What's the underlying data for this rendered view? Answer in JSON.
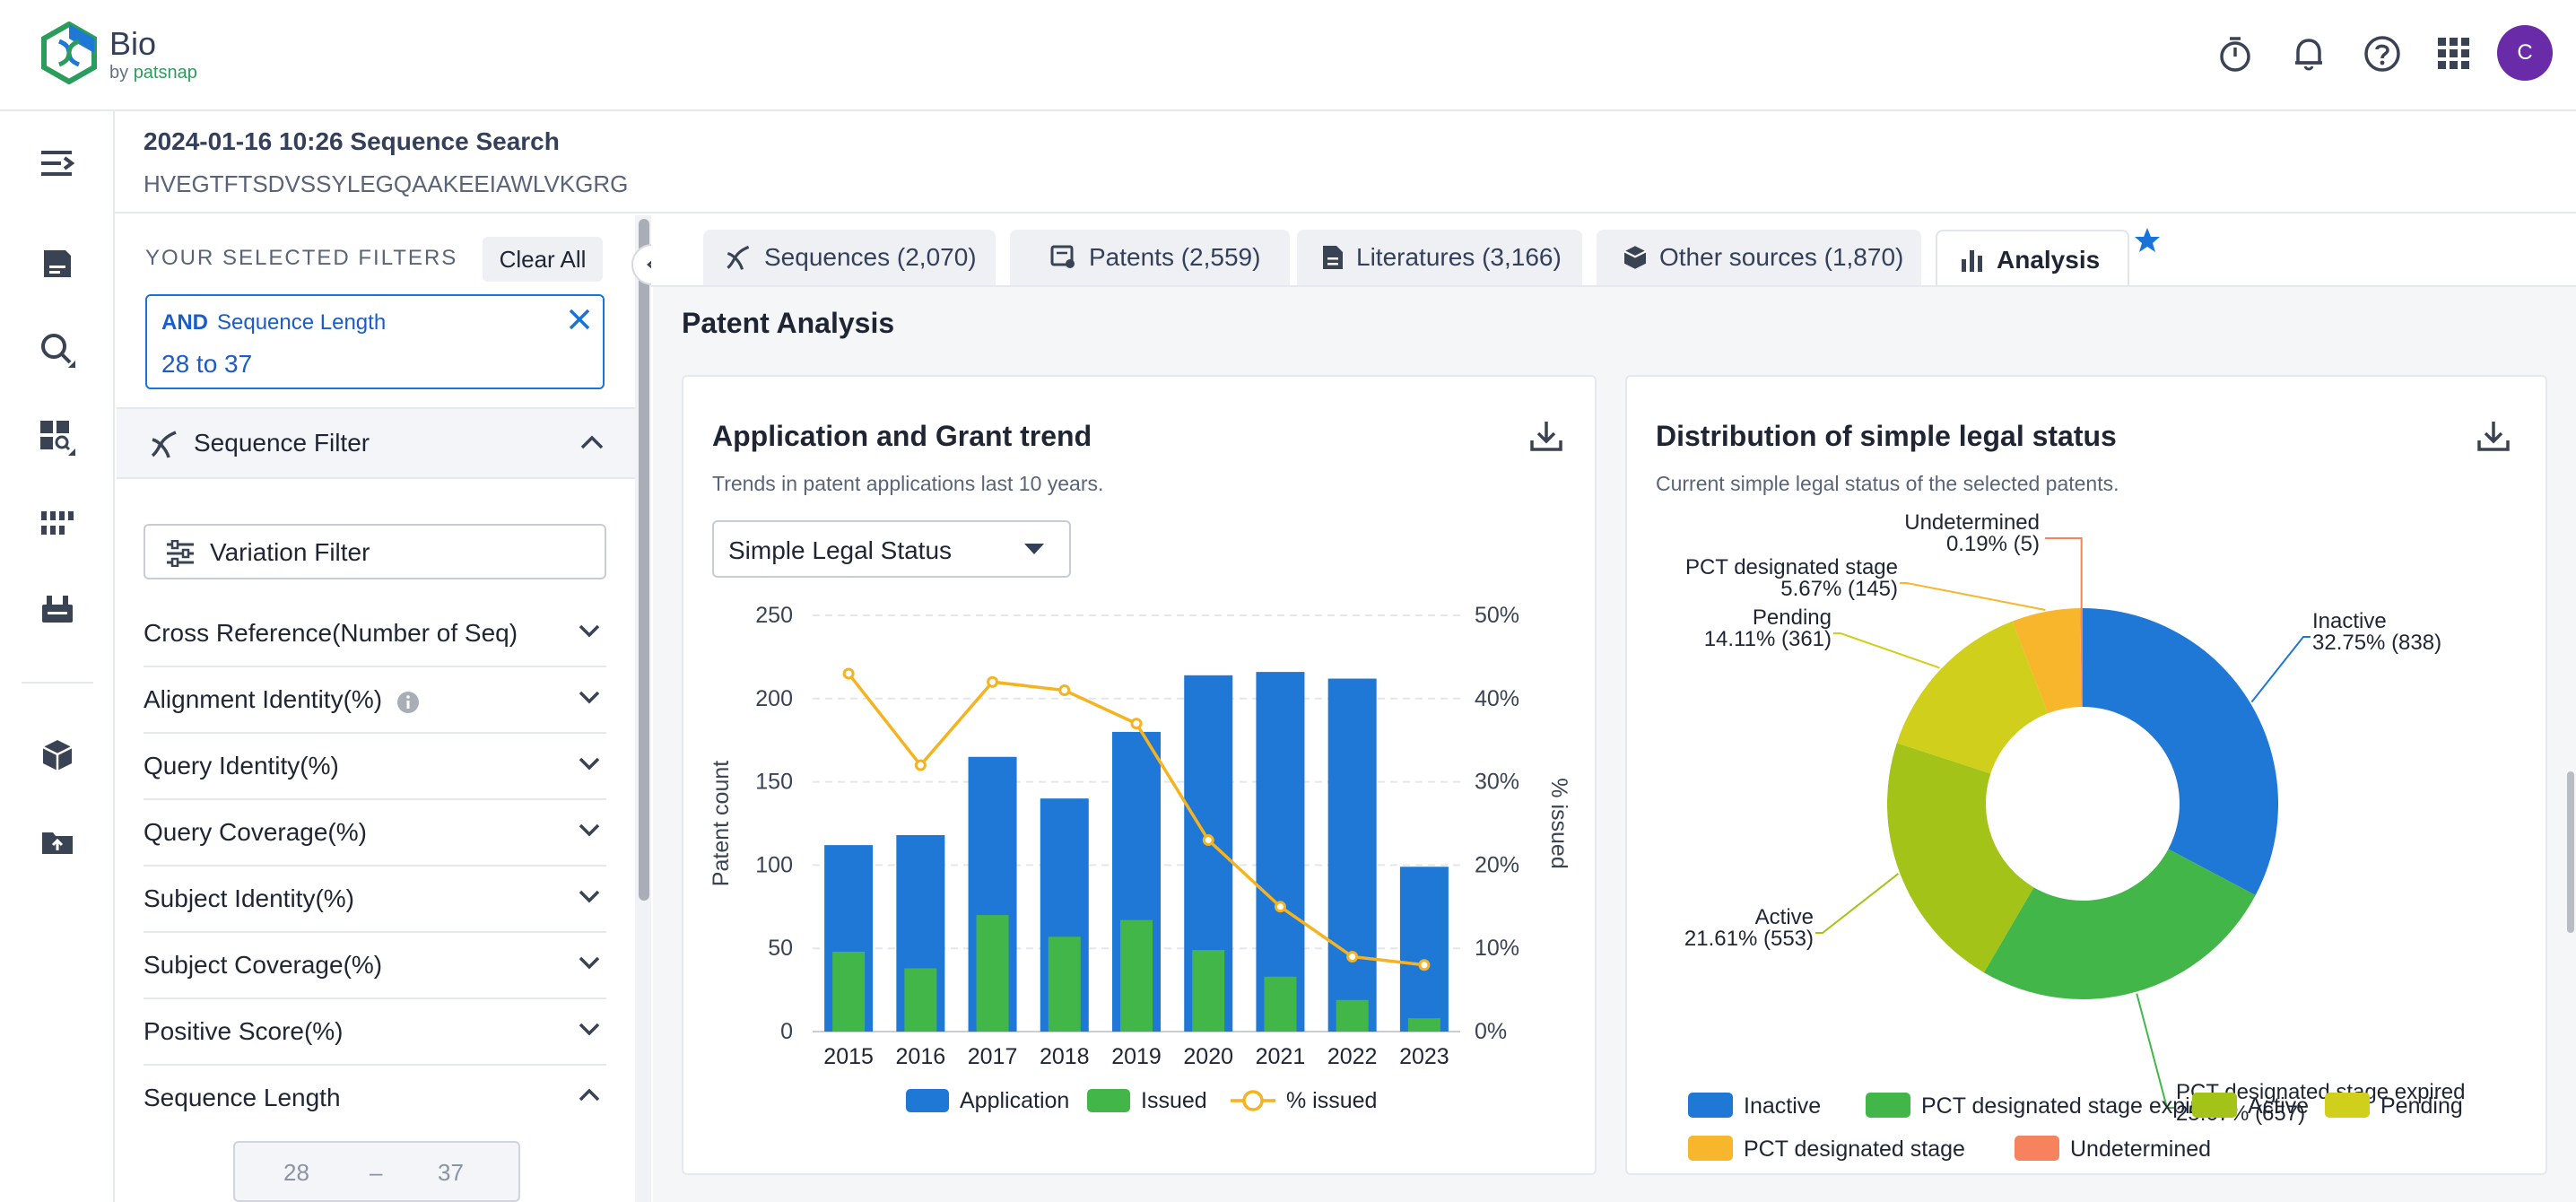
{
  "app": {
    "name": "Bio",
    "by_prefix": "by",
    "by_brand": "patsnap",
    "user_initial": "C"
  },
  "search": {
    "title": "2024-01-16 10:26 Sequence Search",
    "sequence": "HVEGTFTSDVSSYLEGQAAKEEIAWLVKGRG"
  },
  "filters": {
    "header": "YOUR SELECTED FILTERS",
    "clear_all": "Clear All",
    "chip": {
      "op": "AND",
      "name": "Sequence Length",
      "value": "28 to 37"
    },
    "sequence_filter": "Sequence Filter",
    "variation_filter": "Variation Filter",
    "facets": [
      "Cross Reference(Number of Seq)",
      "Alignment Identity(%)",
      "Query Identity(%)",
      "Query Coverage(%)",
      "Subject Identity(%)",
      "Subject Coverage(%)",
      "Positive Score(%)",
      "Sequence Length"
    ],
    "range": {
      "min": "28",
      "sep": "–",
      "max": "37"
    }
  },
  "tabs": [
    {
      "label": "Sequences (2,070)",
      "icon": "dna-icon"
    },
    {
      "label": "Patents (2,559)",
      "icon": "patent-icon"
    },
    {
      "label": "Literatures (3,166)",
      "icon": "document-icon"
    },
    {
      "label": "Other sources (1,870)",
      "icon": "cube-icon"
    },
    {
      "label": "Analysis",
      "icon": "bar-chart-icon",
      "active": true
    }
  ],
  "main": {
    "section_title": "Patent Analysis"
  },
  "trend_card": {
    "title": "Application and Grant trend",
    "subtitle": "Trends in patent applications last 10 years.",
    "select_value": "Simple Legal Status"
  },
  "legal_card": {
    "title": "Distribution of simple legal status",
    "subtitle": "Current simple legal status of the selected patents."
  },
  "chart_data": [
    {
      "type": "bar",
      "categories": [
        "2015",
        "2016",
        "2017",
        "2018",
        "2019",
        "2020",
        "2021",
        "2022",
        "2023"
      ],
      "series": [
        {
          "name": "Application",
          "kind": "bar",
          "color": "#1f77d6",
          "values": [
            112,
            118,
            165,
            140,
            180,
            214,
            216,
            212,
            99
          ]
        },
        {
          "name": "Issued",
          "kind": "bar",
          "color": "#43b649",
          "values": [
            48,
            38,
            70,
            57,
            67,
            49,
            33,
            19,
            8
          ]
        },
        {
          "name": "% issued",
          "kind": "line",
          "color": "#f5b320",
          "axis": "right",
          "values": [
            43,
            32,
            42,
            41,
            37,
            23,
            15,
            9,
            8
          ]
        }
      ],
      "ylabel": "Patent count",
      "ylabel_right": "% issued",
      "ylim": [
        0,
        250
      ],
      "yticks": [
        0,
        50,
        100,
        150,
        200,
        250
      ],
      "ylim_right": [
        0,
        50
      ],
      "yticks_right": [
        "0%",
        "10%",
        "20%",
        "30%",
        "40%",
        "50%"
      ],
      "grid": true,
      "legend": "bottom"
    },
    {
      "type": "pie",
      "donut": true,
      "slices": [
        {
          "name": "Inactive",
          "pct": "32.75%",
          "count": 838,
          "color": "#1f77d6"
        },
        {
          "name": "PCT designated stage expired",
          "pct": "25.67%",
          "count": 657,
          "color": "#43b649"
        },
        {
          "name": "Active",
          "pct": "21.61%",
          "count": 553,
          "color": "#a4c319"
        },
        {
          "name": "Pending",
          "pct": "14.11%",
          "count": 361,
          "color": "#cfcf1c"
        },
        {
          "name": "PCT designated stage",
          "pct": "5.67%",
          "count": 145,
          "color": "#f8b62d"
        },
        {
          "name": "Undetermined",
          "pct": "0.19%",
          "count": 5,
          "color": "#f7825e"
        }
      ],
      "legend": "bottom"
    }
  ]
}
